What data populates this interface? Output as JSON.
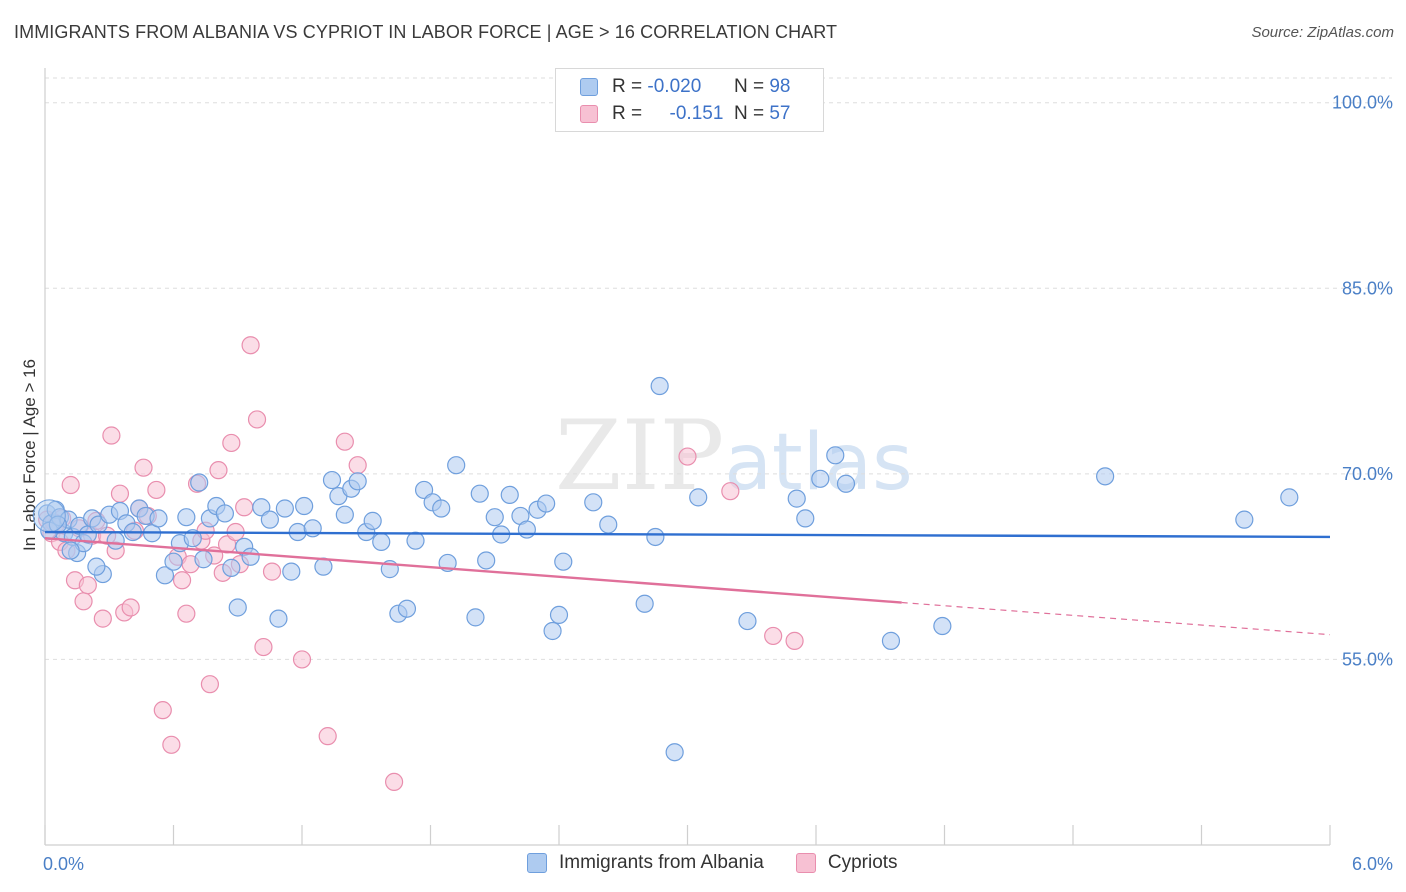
{
  "title": "IMMIGRANTS FROM ALBANIA VS CYPRIOT IN LABOR FORCE | AGE > 16 CORRELATION CHART",
  "source": "Source: ZipAtlas.com",
  "watermark": {
    "zip": "ZIP",
    "atlas": "atlas"
  },
  "legend": {
    "r_label": "R =",
    "n_label": "N =",
    "series": [
      {
        "r": "-0.020",
        "n": "98"
      },
      {
        "r": "-0.151",
        "n": "57"
      }
    ]
  },
  "bottom_legend": [
    "Immigrants from Albania",
    "Cypriots"
  ],
  "colors": {
    "blue_fill": "#aecbf0",
    "blue_stroke": "#6f9fdd",
    "blue_line": "#2f6fd0",
    "pink_fill": "#f7c1d3",
    "pink_stroke": "#e98eae",
    "pink_line": "#e0709a",
    "tick_text": "#4a7fc6",
    "grid": "#dedede"
  },
  "chart_data": {
    "type": "scatter",
    "title": "IMMIGRANTS FROM ALBANIA VS CYPRIOT IN LABOR FORCE | AGE > 16 CORRELATION CHART",
    "xlabel": "",
    "ylabel": "In Labor Force | Age > 16",
    "xlim": [
      0,
      6
    ],
    "ylim": [
      40,
      102
    ],
    "x_tick_labels": [
      "0.0%",
      "6.0%"
    ],
    "y_ticks": [
      55,
      70,
      85,
      100
    ],
    "y_tick_labels": [
      "55.0%",
      "70.0%",
      "85.0%",
      "100.0%"
    ],
    "grid": true,
    "series": [
      {
        "name": "Immigrants from Albania",
        "r": -0.02,
        "n": 98,
        "trend": {
          "x0": 0.0,
          "y0": 65.3,
          "x1": 6.0,
          "y1": 64.9,
          "solid_until": 6.0
        },
        "points": [
          [
            0.01,
            66.8
          ],
          [
            0.03,
            66.0
          ],
          [
            0.05,
            67.1
          ],
          [
            0.07,
            66.5
          ],
          [
            0.09,
            65.2
          ],
          [
            0.11,
            66.3
          ],
          [
            0.13,
            64.9
          ],
          [
            0.15,
            63.6
          ],
          [
            0.16,
            65.8
          ],
          [
            0.18,
            64.4
          ],
          [
            0.2,
            65.1
          ],
          [
            0.22,
            66.4
          ],
          [
            0.25,
            65.9
          ],
          [
            0.27,
            61.9
          ],
          [
            0.3,
            66.7
          ],
          [
            0.33,
            64.6
          ],
          [
            0.35,
            67.0
          ],
          [
            0.38,
            66.0
          ],
          [
            0.41,
            65.3
          ],
          [
            0.44,
            67.2
          ],
          [
            0.47,
            66.6
          ],
          [
            0.5,
            65.2
          ],
          [
            0.53,
            66.4
          ],
          [
            0.56,
            61.8
          ],
          [
            0.6,
            62.9
          ],
          [
            0.63,
            64.4
          ],
          [
            0.66,
            66.5
          ],
          [
            0.69,
            64.8
          ],
          [
            0.72,
            69.3
          ],
          [
            0.74,
            63.1
          ],
          [
            0.77,
            66.4
          ],
          [
            0.8,
            67.4
          ],
          [
            0.84,
            66.8
          ],
          [
            0.87,
            62.4
          ],
          [
            0.9,
            59.2
          ],
          [
            0.93,
            64.1
          ],
          [
            0.96,
            63.3
          ],
          [
            1.01,
            67.3
          ],
          [
            1.05,
            66.3
          ],
          [
            1.09,
            58.3
          ],
          [
            1.12,
            67.2
          ],
          [
            1.15,
            62.1
          ],
          [
            1.18,
            65.3
          ],
          [
            1.21,
            67.4
          ],
          [
            1.25,
            65.6
          ],
          [
            1.3,
            62.5
          ],
          [
            1.34,
            69.5
          ],
          [
            1.37,
            68.2
          ],
          [
            1.4,
            66.7
          ],
          [
            1.43,
            68.8
          ],
          [
            1.46,
            69.4
          ],
          [
            1.5,
            65.3
          ],
          [
            1.53,
            66.2
          ],
          [
            1.57,
            64.5
          ],
          [
            1.61,
            62.3
          ],
          [
            1.65,
            58.7
          ],
          [
            1.69,
            59.1
          ],
          [
            1.73,
            64.6
          ],
          [
            1.77,
            68.7
          ],
          [
            1.81,
            67.7
          ],
          [
            1.85,
            67.2
          ],
          [
            1.88,
            62.8
          ],
          [
            1.92,
            70.7
          ],
          [
            2.01,
            58.4
          ],
          [
            2.03,
            68.4
          ],
          [
            2.06,
            63.0
          ],
          [
            2.1,
            66.5
          ],
          [
            2.13,
            65.1
          ],
          [
            2.17,
            68.3
          ],
          [
            2.22,
            66.6
          ],
          [
            2.25,
            65.5
          ],
          [
            2.3,
            67.1
          ],
          [
            2.34,
            67.6
          ],
          [
            2.37,
            57.3
          ],
          [
            2.4,
            58.6
          ],
          [
            2.42,
            62.9
          ],
          [
            2.56,
            67.7
          ],
          [
            2.63,
            65.9
          ],
          [
            2.8,
            59.5
          ],
          [
            2.85,
            64.9
          ],
          [
            2.87,
            77.1
          ],
          [
            2.94,
            47.5
          ],
          [
            3.05,
            68.1
          ],
          [
            3.28,
            58.1
          ],
          [
            3.51,
            68.0
          ],
          [
            3.55,
            66.4
          ],
          [
            3.62,
            69.6
          ],
          [
            3.69,
            71.5
          ],
          [
            3.74,
            69.2
          ],
          [
            3.95,
            56.5
          ],
          [
            4.19,
            57.7
          ],
          [
            4.95,
            69.8
          ],
          [
            5.6,
            66.3
          ],
          [
            5.81,
            68.1
          ],
          [
            0.02,
            65.4
          ],
          [
            0.06,
            65.9
          ],
          [
            0.12,
            63.8
          ],
          [
            0.24,
            62.5
          ]
        ]
      },
      {
        "name": "Cypriots",
        "r": -0.151,
        "n": 57,
        "trend": {
          "x0": 0.0,
          "y0": 64.8,
          "x1": 6.0,
          "y1": 57.0,
          "solid_until": 4.0
        },
        "points": [
          [
            0.01,
            66.3
          ],
          [
            0.03,
            65.2
          ],
          [
            0.05,
            65.9
          ],
          [
            0.07,
            64.5
          ],
          [
            0.08,
            66.4
          ],
          [
            0.1,
            63.8
          ],
          [
            0.12,
            69.1
          ],
          [
            0.14,
            61.4
          ],
          [
            0.16,
            65.6
          ],
          [
            0.18,
            59.7
          ],
          [
            0.2,
            61.0
          ],
          [
            0.22,
            65.0
          ],
          [
            0.24,
            66.2
          ],
          [
            0.27,
            58.3
          ],
          [
            0.29,
            65.0
          ],
          [
            0.31,
            73.1
          ],
          [
            0.33,
            63.8
          ],
          [
            0.35,
            68.4
          ],
          [
            0.37,
            58.8
          ],
          [
            0.4,
            59.2
          ],
          [
            0.42,
            65.4
          ],
          [
            0.44,
            67.2
          ],
          [
            0.46,
            70.5
          ],
          [
            0.48,
            66.6
          ],
          [
            0.52,
            68.7
          ],
          [
            0.55,
            50.9
          ],
          [
            0.59,
            48.1
          ],
          [
            0.62,
            63.3
          ],
          [
            0.64,
            61.4
          ],
          [
            0.66,
            58.7
          ],
          [
            0.68,
            62.7
          ],
          [
            0.71,
            69.2
          ],
          [
            0.73,
            64.6
          ],
          [
            0.75,
            65.4
          ],
          [
            0.77,
            53.0
          ],
          [
            0.79,
            63.4
          ],
          [
            0.81,
            70.3
          ],
          [
            0.83,
            62.0
          ],
          [
            0.85,
            64.3
          ],
          [
            0.87,
            72.5
          ],
          [
            0.89,
            65.3
          ],
          [
            0.91,
            62.7
          ],
          [
            0.93,
            67.3
          ],
          [
            0.96,
            80.4
          ],
          [
            0.99,
            74.4
          ],
          [
            1.02,
            56.0
          ],
          [
            1.06,
            62.1
          ],
          [
            1.2,
            55.0
          ],
          [
            1.32,
            48.8
          ],
          [
            1.4,
            72.6
          ],
          [
            1.46,
            70.7
          ],
          [
            1.63,
            45.1
          ],
          [
            3.0,
            71.4
          ],
          [
            3.2,
            68.6
          ],
          [
            3.4,
            56.9
          ],
          [
            3.5,
            56.5
          ],
          [
            0.04,
            66.1
          ]
        ]
      }
    ]
  }
}
